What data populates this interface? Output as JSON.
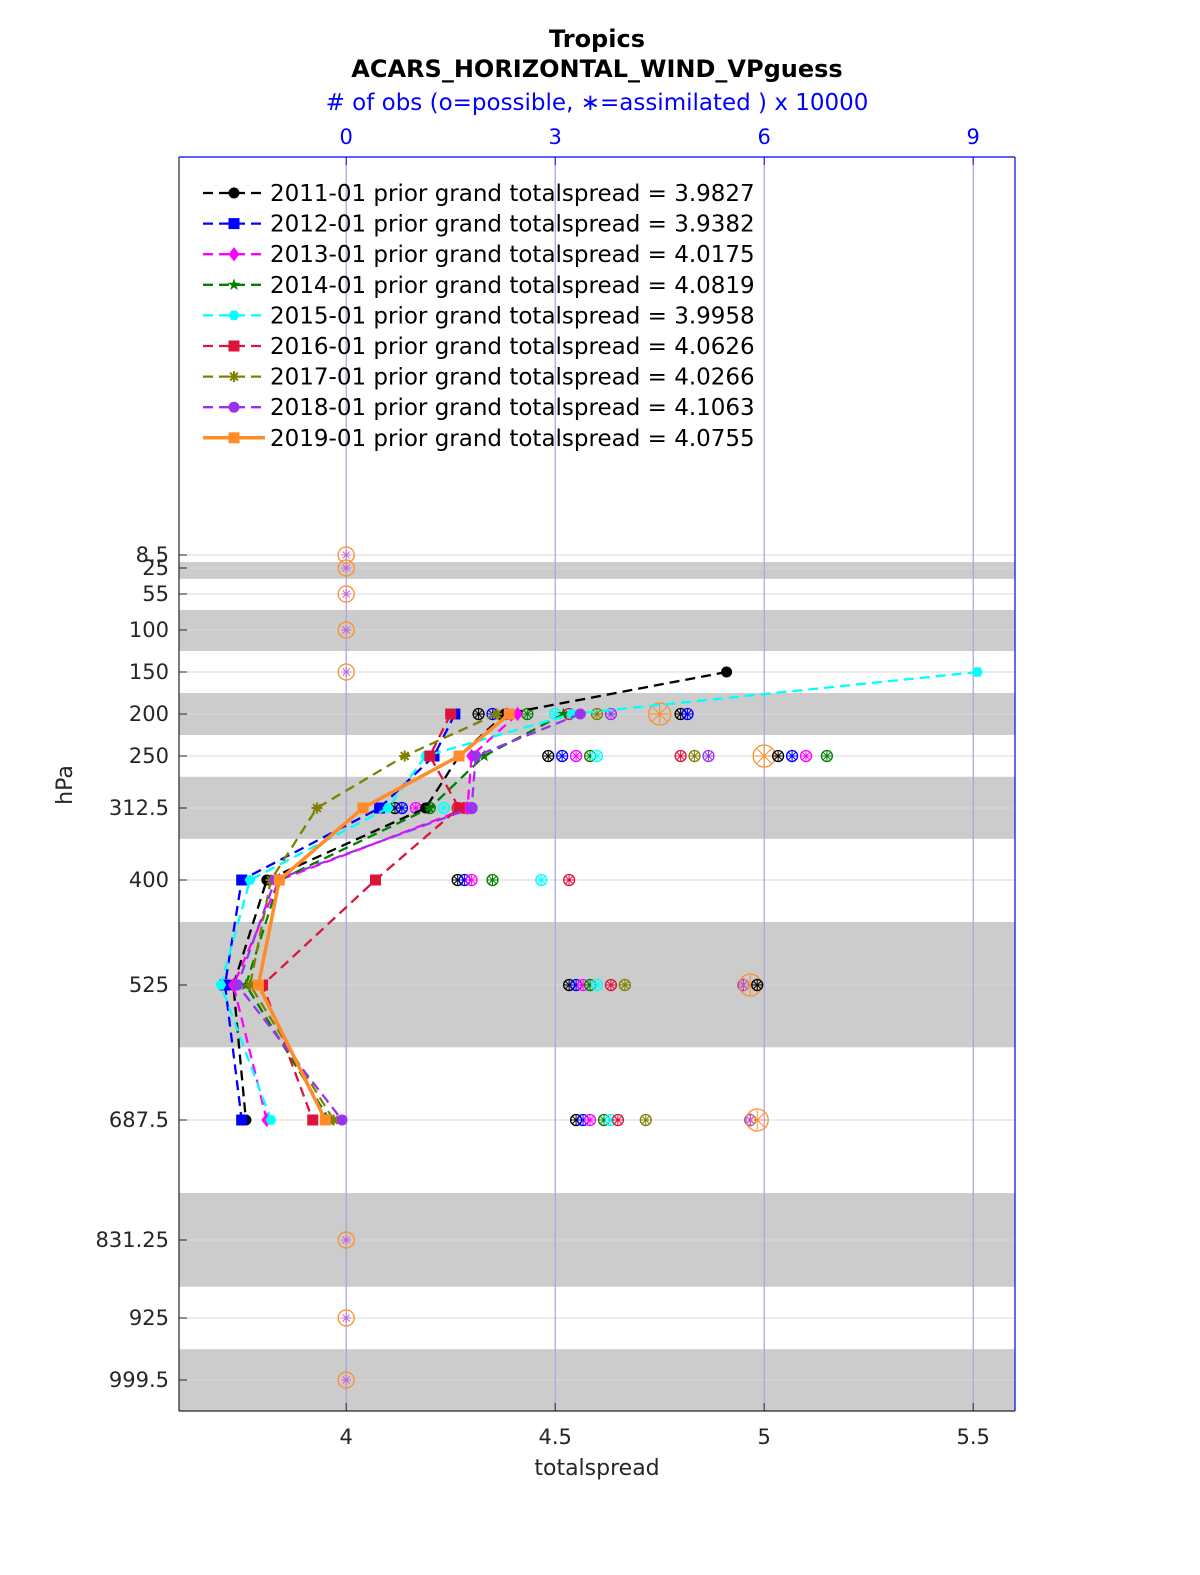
{
  "chart_data": {
    "type": "line",
    "title": "Tropics",
    "subtitle": "ACARS_HORIZONTAL_WIND_VPguess",
    "top_axis_label": "# of obs (o=possible, ∗=assimilated ) x 10000",
    "top_ticks": [
      "0",
      "3",
      "6",
      "9"
    ],
    "top_tick_values": [
      0,
      3,
      6,
      9
    ],
    "top_range": [
      -2.4,
      9.6
    ],
    "xlabel": "totalspread",
    "ylabel": "hPa",
    "xlim": [
      3.6,
      5.6
    ],
    "x_ticks": [
      "4",
      "4.5",
      "5",
      "5.5"
    ],
    "x_tick_values": [
      4,
      4.5,
      5,
      5.5
    ],
    "levels": [
      8.5,
      25,
      55,
      100,
      150,
      200,
      250,
      312.5,
      400,
      525,
      687.5,
      831.25,
      925,
      999.5
    ],
    "level_labels": [
      "8.5",
      "25",
      "55",
      "100",
      "150",
      "200",
      "250",
      "312.5",
      "400",
      "525",
      "687.5",
      "831.25",
      "925",
      "999.5"
    ],
    "shaded_bands": [
      [
        17.5,
        37.5
      ],
      [
        75,
        125
      ],
      [
        175,
        225
      ],
      [
        275,
        350
      ],
      [
        450,
        600
      ],
      [
        775,
        887.5
      ],
      [
        962.5,
        1037
      ]
    ],
    "legend_position": "top-left",
    "series": [
      {
        "name": "2011-01 prior grand totalspread = 3.9827",
        "color": "#000000",
        "marker": "circle",
        "style": "dashed",
        "levels": [
          150,
          200,
          250,
          312.5,
          400,
          525,
          687.5
        ],
        "values": [
          4.91,
          4.38,
          4.27,
          4.19,
          3.81,
          3.73,
          3.76
        ]
      },
      {
        "name": "2012-01 prior grand totalspread = 3.9382",
        "color": "#0000ff",
        "marker": "square",
        "style": "dashed",
        "levels": [
          200,
          250,
          312.5,
          400,
          525,
          687.5
        ],
        "values": [
          4.26,
          4.21,
          4.08,
          3.75,
          3.71,
          3.75
        ]
      },
      {
        "name": "2013-01 prior grand totalspread = 4.0175",
        "color": "#ff00ff",
        "marker": "diamond",
        "style": "dashed",
        "levels": [
          200,
          250,
          312.5,
          400,
          525,
          687.5
        ],
        "values": [
          4.41,
          4.3,
          4.29,
          3.84,
          3.73,
          3.81
        ]
      },
      {
        "name": "2014-01 prior grand totalspread = 4.0819",
        "color": "#008000",
        "marker": "star",
        "style": "dashed",
        "levels": [
          200,
          250,
          312.5,
          400,
          525,
          687.5
        ],
        "values": [
          4.52,
          4.33,
          4.2,
          3.84,
          3.76,
          3.96
        ]
      },
      {
        "name": "2015-01 prior grand totalspread = 3.9958",
        "color": "#00ffff",
        "marker": "hexagon",
        "style": "dashed",
        "levels": [
          150,
          200,
          250,
          312.5,
          400,
          525,
          687.5
        ],
        "values": [
          5.51,
          4.54,
          4.19,
          4.1,
          3.77,
          3.7,
          3.82
        ]
      },
      {
        "name": "2016-01 prior grand totalspread = 4.0626",
        "color": "#dc143c",
        "marker": "square",
        "style": "dashed",
        "levels": [
          200,
          250,
          312.5,
          400,
          525,
          687.5
        ],
        "values": [
          4.25,
          4.2,
          4.27,
          4.07,
          3.8,
          3.92
        ]
      },
      {
        "name": "2017-01 prior grand totalspread = 4.0266",
        "color": "#808000",
        "marker": "asterisk",
        "style": "dashed",
        "levels": [
          200,
          250,
          312.5,
          400,
          525,
          687.5
        ],
        "values": [
          4.36,
          4.14,
          3.93,
          3.82,
          3.77,
          3.97
        ]
      },
      {
        "name": "2018-01 prior grand totalspread = 4.1063",
        "color": "#9933ee",
        "marker": "circle",
        "style": "dashed",
        "levels": [
          200,
          250,
          312.5,
          400,
          525,
          687.5
        ],
        "values": [
          4.56,
          4.31,
          4.3,
          3.83,
          3.74,
          3.99
        ]
      },
      {
        "name": "2019-01 prior grand totalspread = 4.0755",
        "color": "#ff8c28",
        "marker": "square",
        "style": "solid",
        "levels": [
          200,
          250,
          312.5,
          400,
          525,
          687.5
        ],
        "values": [
          4.39,
          4.27,
          4.04,
          3.84,
          3.79,
          3.95
        ]
      }
    ],
    "obs_count_markers": [
      {
        "level": 8.5,
        "values": [
          0
        ]
      },
      {
        "level": 25,
        "values": [
          0
        ]
      },
      {
        "level": 55,
        "values": [
          0
        ]
      },
      {
        "level": 100,
        "values": [
          0
        ]
      },
      {
        "level": 150,
        "values": [
          0
        ]
      },
      {
        "level": 200,
        "values": [
          1.9,
          2.1,
          2.3,
          2.6,
          3.0,
          3.2,
          3.6,
          3.8,
          4.5,
          4.8,
          4.9
        ]
      },
      {
        "level": 250,
        "values": [
          2.9,
          3.1,
          3.3,
          3.5,
          3.6,
          4.8,
          5.0,
          5.2,
          6.0,
          6.2,
          6.4,
          6.6,
          6.9
        ]
      },
      {
        "level": 312.5,
        "values": [
          0.7,
          0.8,
          1.0,
          1.2,
          1.4,
          1.6,
          1.7,
          1.8
        ]
      },
      {
        "level": 400,
        "values": [
          1.6,
          1.7,
          1.8,
          2.1,
          2.8,
          3.2
        ]
      },
      {
        "level": 525,
        "values": [
          3.2,
          3.3,
          3.4,
          3.5,
          3.6,
          3.8,
          4.0,
          5.7,
          5.8,
          5.9
        ]
      },
      {
        "level": 687.5,
        "values": [
          3.3,
          3.4,
          3.5,
          3.7,
          3.8,
          3.9,
          4.3,
          5.8,
          5.9
        ]
      },
      {
        "level": 831.25,
        "values": [
          0
        ]
      },
      {
        "level": 925,
        "values": [
          0
        ]
      },
      {
        "level": 999.5,
        "values": [
          0
        ]
      }
    ]
  }
}
